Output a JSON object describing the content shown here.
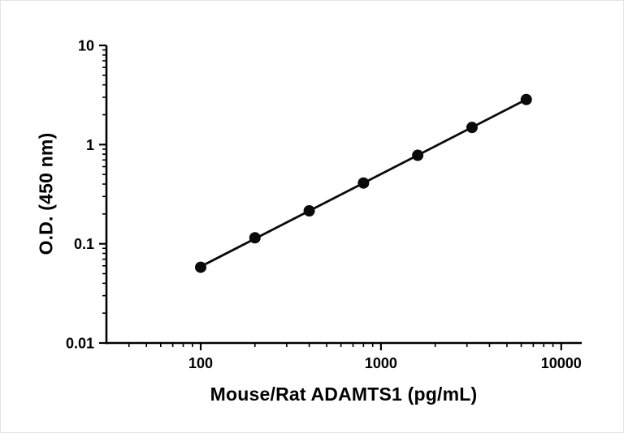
{
  "chart_data": {
    "type": "scatter",
    "title": "",
    "xlabel": "Mouse/Rat ADAMTS1 (pg/mL)",
    "ylabel": "O.D. (450 nm)",
    "x_scale": "log",
    "y_scale": "log",
    "x": [
      100,
      200,
      400,
      800,
      1600,
      3200,
      6400
    ],
    "y": [
      0.058,
      0.115,
      0.215,
      0.41,
      0.78,
      1.49,
      2.85
    ],
    "xlim": [
      30,
      13000
    ],
    "ylim": [
      0.01,
      10
    ],
    "x_ticks": [
      100,
      1000,
      10000
    ],
    "x_tick_labels": [
      "100",
      "1000",
      "10000"
    ],
    "y_ticks": [
      0.01,
      0.1,
      1,
      10
    ],
    "y_tick_labels": [
      "0.01",
      "0.1",
      "1",
      "10"
    ],
    "grid": false,
    "legend": "none",
    "marker_shape": "circle",
    "marker_color": "#0a0a0a",
    "line_color": "#0a0a0a",
    "axis_color": "#000000",
    "background_color": "#ffffff",
    "fit": "straight line through points (log-log linear)"
  }
}
